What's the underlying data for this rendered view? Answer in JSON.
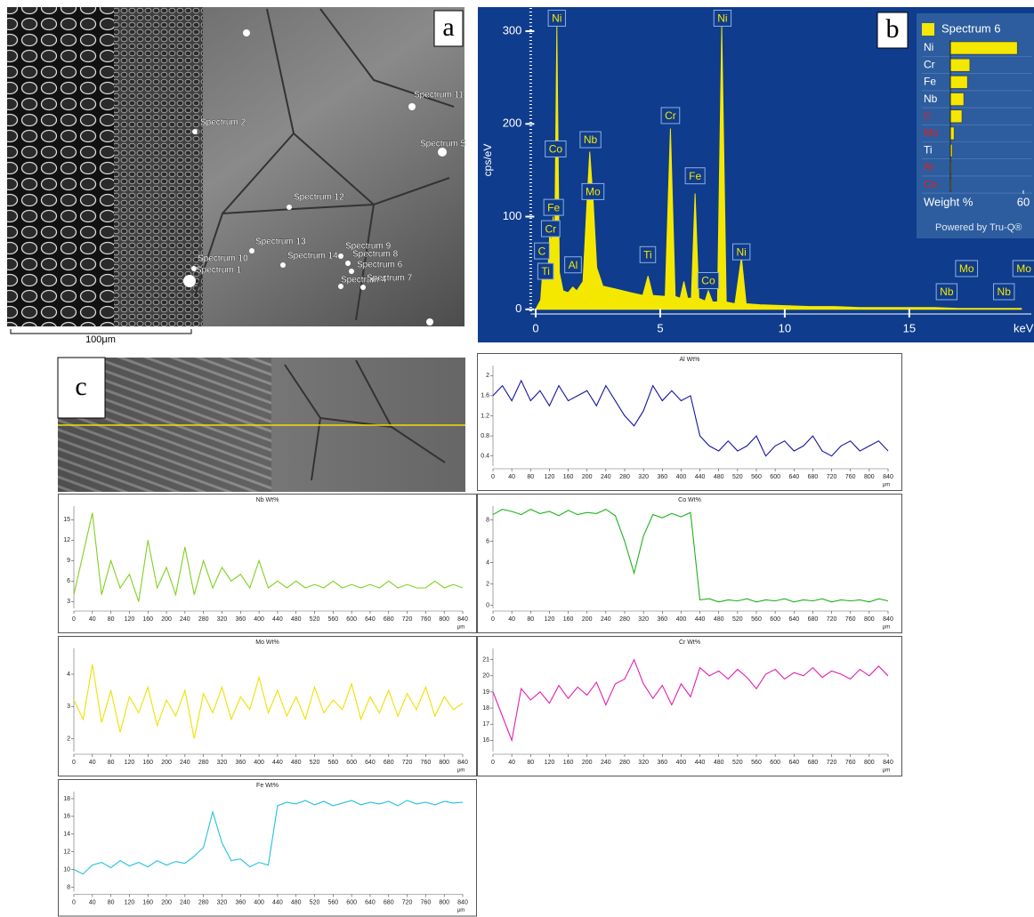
{
  "panel_labels": [
    "a",
    "b",
    "c"
  ],
  "sem_image_a": {
    "spectrum_labels": [
      "Spectrum 2",
      "Spectrum 11",
      "Spectrum 5",
      "Spectrum 12",
      "Spectrum 13",
      "Spectrum 10",
      "Spectrum 1",
      "Spectrum 14",
      "Spectrum 9",
      "Spectrum 8",
      "Spectrum 6",
      "Spectrum 4",
      "Spectrum 7"
    ],
    "scale_bar": "100μm"
  },
  "chart_data": [
    {
      "type": "area",
      "color": "#f5e800",
      "background": "#0f3c8c",
      "ylabel": "cps/eV",
      "xlabel": "keV",
      "x": [
        0,
        0.2,
        0.28,
        0.36,
        0.5,
        0.57,
        0.64,
        0.7,
        0.76,
        0.85,
        0.95,
        1.1,
        1.3,
        1.49,
        1.65,
        1.9,
        2.05,
        2.17,
        2.3,
        2.45,
        2.7,
        3.2,
        3.8,
        4.3,
        4.51,
        4.7,
        5.2,
        5.41,
        5.6,
        5.8,
        5.95,
        6.1,
        6.25,
        6.4,
        6.55,
        6.8,
        6.93,
        7.1,
        7.3,
        7.47,
        7.65,
        8.0,
        8.26,
        8.45,
        9,
        10,
        11,
        12,
        13,
        14,
        15,
        16,
        17,
        18,
        19,
        19.5
      ],
      "values": [
        0,
        10,
        40,
        30,
        45,
        85,
        70,
        100,
        60,
        305,
        40,
        20,
        18,
        24,
        20,
        30,
        110,
        170,
        120,
        45,
        25,
        22,
        18,
        15,
        36,
        15,
        14,
        195,
        14,
        12,
        30,
        12,
        12,
        125,
        12,
        9,
        20,
        8,
        8,
        305,
        8,
        6,
        56,
        6,
        5,
        4,
        3,
        3,
        2,
        2,
        2,
        2,
        1,
        1,
        1,
        1
      ],
      "xlim": [
        -0.2,
        19.9
      ],
      "ylim": [
        -5,
        325
      ],
      "xticks": [
        0,
        5,
        10,
        15
      ],
      "yticks": [
        0,
        100,
        200,
        300
      ],
      "annotations": [
        {
          "text": "Ni",
          "x": 0.85,
          "y": 314
        },
        {
          "text": "Co",
          "x": 0.8,
          "y": 173
        },
        {
          "text": "Fe",
          "x": 0.72,
          "y": 110
        },
        {
          "text": "Cr",
          "x": 0.6,
          "y": 87
        },
        {
          "text": "C",
          "x": 0.25,
          "y": 63
        },
        {
          "text": "Ti",
          "x": 0.4,
          "y": 41
        },
        {
          "text": "Al",
          "x": 1.5,
          "y": 48
        },
        {
          "text": "Nb",
          "x": 2.2,
          "y": 183
        },
        {
          "text": "Mo",
          "x": 2.3,
          "y": 127
        },
        {
          "text": "Ti",
          "x": 4.5,
          "y": 59
        },
        {
          "text": "Cr",
          "x": 5.41,
          "y": 209
        },
        {
          "text": "Fe",
          "x": 6.4,
          "y": 144
        },
        {
          "text": "Co",
          "x": 6.93,
          "y": 31
        },
        {
          "text": "Ni",
          "x": 7.5,
          "y": 314
        },
        {
          "text": "Ni",
          "x": 8.26,
          "y": 62
        },
        {
          "text": "Nb",
          "x": 16.5,
          "y": 19
        },
        {
          "text": "Mo",
          "x": 17.3,
          "y": 44
        },
        {
          "text": "Nb",
          "x": 18.8,
          "y": 19
        },
        {
          "text": "Mo",
          "x": 19.6,
          "y": 44
        }
      ]
    },
    {
      "type": "hbar",
      "title": "Spectrum 6",
      "color": "#f5e800",
      "categories": [
        "Ni",
        "Cr",
        "Fe",
        "Nb",
        "C",
        "Mo",
        "Ti",
        "Al",
        "Co"
      ],
      "label_colors": [
        "#ffffff",
        "#ffffff",
        "#ffffff",
        "#ffffff",
        "#e02020",
        "#e02020",
        "#ffffff",
        "#e02020",
        "#e02020"
      ],
      "values": [
        55,
        16,
        14,
        11,
        9.5,
        3,
        1.5,
        0.7,
        0.7
      ],
      "xlim": [
        0,
        60
      ],
      "xticks": [
        60
      ],
      "xlabel": "Weight %",
      "footer": "Powered by Tru-Q®"
    },
    {
      "type": "line",
      "title": "Al Wt%",
      "color": "#1414a0",
      "xlabel": "μm",
      "x": [
        0,
        20,
        40,
        60,
        80,
        100,
        120,
        140,
        160,
        180,
        200,
        220,
        240,
        260,
        280,
        300,
        320,
        340,
        360,
        380,
        400,
        420,
        440,
        460,
        480,
        500,
        520,
        540,
        560,
        580,
        600,
        620,
        640,
        660,
        680,
        700,
        720,
        740,
        760,
        780,
        800,
        820,
        840
      ],
      "values": [
        1.6,
        1.8,
        1.5,
        1.9,
        1.5,
        1.7,
        1.4,
        1.8,
        1.5,
        1.6,
        1.7,
        1.4,
        1.8,
        1.5,
        1.2,
        1.0,
        1.3,
        1.8,
        1.5,
        1.7,
        1.5,
        1.6,
        0.8,
        0.6,
        0.5,
        0.7,
        0.5,
        0.6,
        0.8,
        0.4,
        0.6,
        0.7,
        0.5,
        0.6,
        0.8,
        0.5,
        0.4,
        0.6,
        0.7,
        0.5,
        0.6,
        0.7,
        0.5
      ],
      "xlim": [
        0,
        840
      ],
      "ylim": [
        0.2,
        2.2
      ],
      "xticks": [
        0,
        40,
        80,
        120,
        160,
        200,
        240,
        280,
        320,
        360,
        400,
        440,
        480,
        520,
        560,
        600,
        640,
        680,
        720,
        760,
        800,
        840
      ],
      "yticks": [
        0.4,
        0.8,
        1.2,
        1.6,
        2
      ]
    },
    {
      "type": "line",
      "title": "Nb Wt%",
      "color": "#80d020",
      "xlabel": "μm",
      "x": [
        0,
        20,
        40,
        60,
        80,
        100,
        120,
        140,
        160,
        180,
        200,
        220,
        240,
        260,
        280,
        300,
        320,
        340,
        360,
        380,
        400,
        420,
        440,
        460,
        480,
        500,
        520,
        540,
        560,
        580,
        600,
        620,
        640,
        660,
        680,
        700,
        720,
        740,
        760,
        780,
        800,
        820,
        840
      ],
      "values": [
        4,
        10,
        16,
        4,
        9,
        5,
        7,
        3,
        12,
        5,
        8,
        4,
        11,
        4,
        9,
        5,
        8,
        6,
        7,
        5,
        9,
        5,
        6,
        5,
        6,
        5,
        5.5,
        5,
        6,
        5,
        5.5,
        5,
        5.5,
        5,
        6,
        5,
        5.5,
        5,
        5,
        6,
        5,
        5.5,
        5
      ],
      "xlim": [
        0,
        840
      ],
      "ylim": [
        2,
        17
      ],
      "xticks": [
        0,
        40,
        80,
        120,
        160,
        200,
        240,
        280,
        320,
        360,
        400,
        440,
        480,
        520,
        560,
        600,
        640,
        680,
        720,
        760,
        800,
        840
      ],
      "yticks": [
        3,
        6,
        9,
        12,
        15
      ]
    },
    {
      "type": "line",
      "title": "Co Wt%",
      "color": "#20b020",
      "xlabel": "μm",
      "x": [
        0,
        20,
        40,
        60,
        80,
        100,
        120,
        140,
        160,
        180,
        200,
        220,
        240,
        260,
        280,
        300,
        320,
        340,
        360,
        380,
        400,
        420,
        440,
        460,
        480,
        500,
        520,
        540,
        560,
        580,
        600,
        620,
        640,
        660,
        680,
        700,
        720,
        740,
        760,
        780,
        800,
        820,
        840
      ],
      "values": [
        8.5,
        9,
        8.8,
        8.5,
        9,
        8.6,
        8.8,
        8.4,
        8.9,
        8.5,
        8.7,
        8.6,
        9,
        8.4,
        6,
        3,
        6.5,
        8.5,
        8.2,
        8.6,
        8.3,
        8.7,
        0.5,
        0.6,
        0.3,
        0.5,
        0.4,
        0.6,
        0.3,
        0.5,
        0.4,
        0.6,
        0.3,
        0.5,
        0.4,
        0.6,
        0.3,
        0.5,
        0.4,
        0.5,
        0.3,
        0.6,
        0.4
      ],
      "xlim": [
        0,
        840
      ],
      "ylim": [
        -0.3,
        9.3
      ],
      "xticks": [
        0,
        40,
        80,
        120,
        160,
        200,
        240,
        280,
        320,
        360,
        400,
        440,
        480,
        520,
        560,
        600,
        640,
        680,
        720,
        760,
        800,
        840
      ],
      "yticks": [
        0,
        2,
        4,
        6,
        8
      ]
    },
    {
      "type": "line",
      "title": "Mo Wt%",
      "color": "#f0e000",
      "xlabel": "μm",
      "x": [
        0,
        20,
        40,
        60,
        80,
        100,
        120,
        140,
        160,
        180,
        200,
        220,
        240,
        260,
        280,
        300,
        320,
        340,
        360,
        380,
        400,
        420,
        440,
        460,
        480,
        500,
        520,
        540,
        560,
        580,
        600,
        620,
        640,
        660,
        680,
        700,
        720,
        740,
        760,
        780,
        800,
        820,
        840
      ],
      "values": [
        3.2,
        2.6,
        4.3,
        2.5,
        3.5,
        2.2,
        3.3,
        2.8,
        3.6,
        2.4,
        3.2,
        2.7,
        3.5,
        2.0,
        3.4,
        2.8,
        3.6,
        2.6,
        3.3,
        2.9,
        3.9,
        2.8,
        3.5,
        2.7,
        3.3,
        2.6,
        3.6,
        2.8,
        3.2,
        2.9,
        3.7,
        2.6,
        3.3,
        2.8,
        3.5,
        2.7,
        3.4,
        2.9,
        3.6,
        2.7,
        3.3,
        2.9,
        3.1
      ],
      "xlim": [
        0,
        840
      ],
      "ylim": [
        1.6,
        4.8
      ],
      "xticks": [
        0,
        40,
        80,
        120,
        160,
        200,
        240,
        280,
        320,
        360,
        400,
        440,
        480,
        520,
        560,
        600,
        640,
        680,
        720,
        760,
        800,
        840
      ],
      "yticks": [
        2,
        3,
        4
      ]
    },
    {
      "type": "line",
      "title": "Cr Wt%",
      "color": "#e020b0",
      "xlabel": "μm",
      "x": [
        0,
        20,
        40,
        60,
        80,
        100,
        120,
        140,
        160,
        180,
        200,
        220,
        240,
        260,
        280,
        300,
        320,
        340,
        360,
        380,
        400,
        420,
        440,
        460,
        480,
        500,
        520,
        540,
        560,
        580,
        600,
        620,
        640,
        660,
        680,
        700,
        720,
        740,
        760,
        780,
        800,
        820,
        840
      ],
      "values": [
        19,
        17.5,
        16,
        19.2,
        18.5,
        19,
        18.3,
        19.4,
        18.6,
        19.3,
        18.8,
        19.6,
        18.2,
        19.5,
        19.8,
        21,
        19.5,
        18.6,
        19.4,
        18.2,
        19.5,
        18.7,
        20.5,
        20,
        20.3,
        19.8,
        20.4,
        19.9,
        19.2,
        20.1,
        20.4,
        19.8,
        20.2,
        20,
        20.5,
        19.9,
        20.3,
        20.1,
        19.8,
        20.4,
        20,
        20.6,
        20
      ],
      "xlim": [
        0,
        840
      ],
      "ylim": [
        15.3,
        21.7
      ],
      "xticks": [
        0,
        40,
        80,
        120,
        160,
        200,
        240,
        280,
        320,
        360,
        400,
        440,
        480,
        520,
        560,
        600,
        640,
        680,
        720,
        760,
        800,
        840
      ],
      "yticks": [
        16,
        17,
        18,
        19,
        20,
        21
      ]
    },
    {
      "type": "line",
      "title": "Fe Wt%",
      "color": "#20c0e0",
      "xlabel": "μm",
      "x": [
        0,
        20,
        40,
        60,
        80,
        100,
        120,
        140,
        160,
        180,
        200,
        220,
        240,
        260,
        280,
        300,
        320,
        340,
        360,
        380,
        400,
        420,
        440,
        460,
        480,
        500,
        520,
        540,
        560,
        580,
        600,
        620,
        640,
        660,
        680,
        700,
        720,
        740,
        760,
        780,
        800,
        820,
        840
      ],
      "values": [
        10,
        9.5,
        10.5,
        10.8,
        10.2,
        11,
        10.4,
        10.8,
        10.3,
        11,
        10.5,
        10.9,
        10.7,
        11.5,
        12.5,
        16.5,
        13,
        11,
        11.2,
        10.3,
        10.8,
        10.5,
        17.2,
        17.6,
        17.4,
        17.8,
        17.3,
        17.7,
        17.2,
        17.5,
        17.8,
        17.3,
        17.6,
        17.4,
        17.7,
        17.2,
        17.8,
        17.4,
        17.6,
        17.3,
        17.7,
        17.5,
        17.6
      ],
      "xlim": [
        0,
        840
      ],
      "ylim": [
        7.5,
        18.8
      ],
      "xticks": [
        0,
        40,
        80,
        120,
        160,
        200,
        240,
        280,
        320,
        360,
        400,
        440,
        480,
        520,
        560,
        600,
        640,
        680,
        720,
        760,
        800,
        840
      ],
      "yticks": [
        8,
        10,
        12,
        14,
        16,
        18
      ]
    }
  ]
}
